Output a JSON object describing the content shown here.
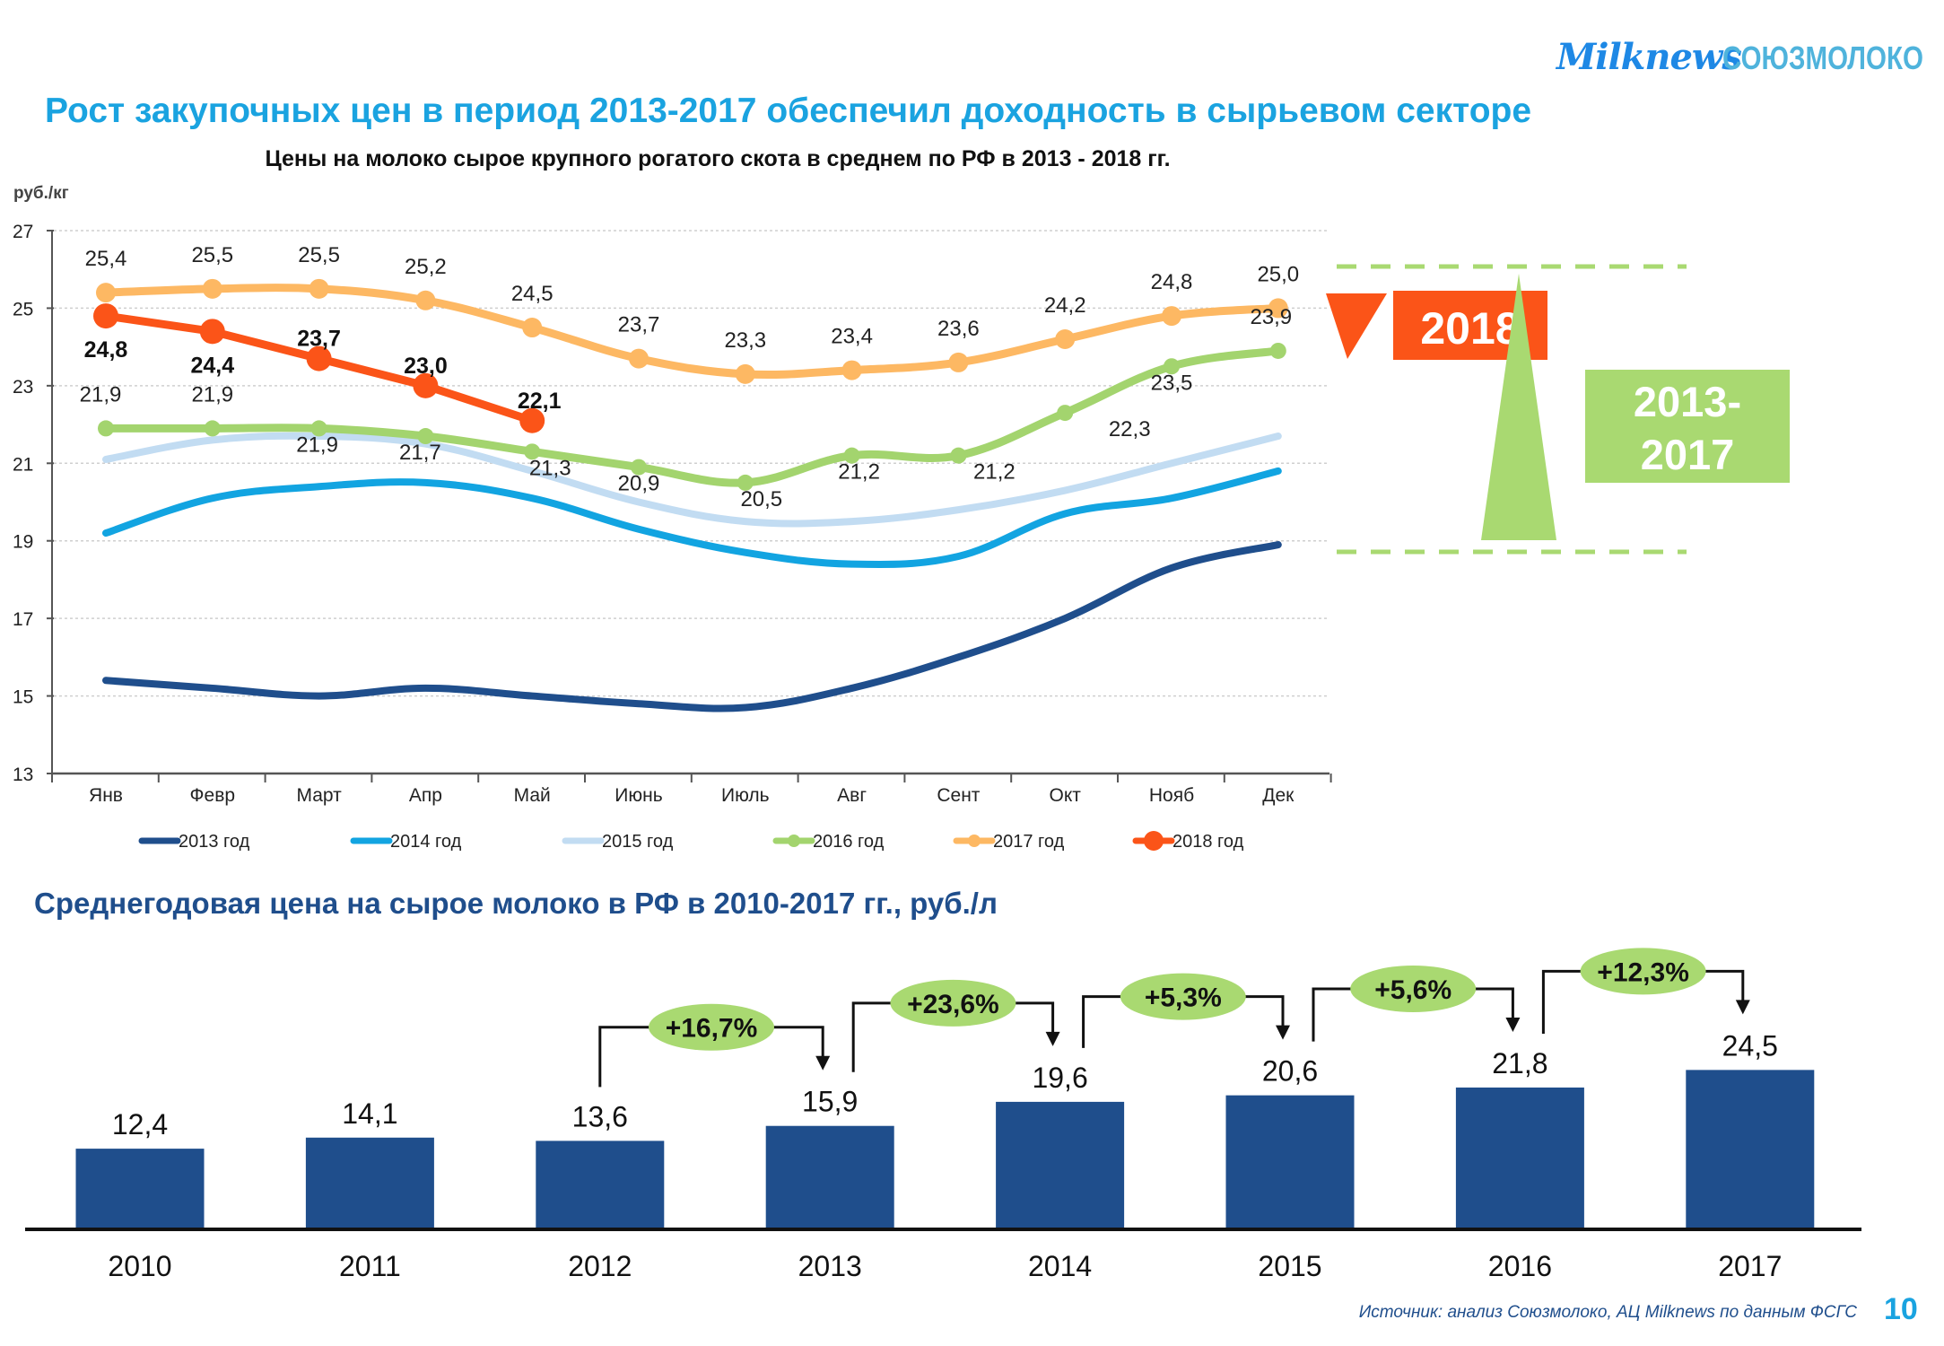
{
  "header": {
    "logo_milknews": "Milknews",
    "logo_soyuzmoloko": "СОЮЗМОЛОКО",
    "title": "Рост закупочных цен в период 2013-2017 обеспечил доходность в сырьевом секторе"
  },
  "annotations": {
    "badge_2018": "2018",
    "badge_2013_2017_line1": "2013-",
    "badge_2013_2017_line2": "2017",
    "colors": {
      "decline": "#fb5418",
      "growth": "#a9d971"
    }
  },
  "footer": {
    "source": "Источник: анализ Союзмолоко, АЦ Milknews по данным ФСГС",
    "page_number": "10"
  },
  "chart_data": [
    {
      "type": "line",
      "title": "Цены на молоко сырое крупного рогатого скота в среднем по РФ в 2013 - 2018 гг.",
      "ylabel": "руб./кг",
      "xlabel": "",
      "ylim": [
        13,
        27
      ],
      "yticks": [
        13,
        15,
        17,
        19,
        21,
        23,
        25,
        27
      ],
      "grid": true,
      "legend_position": "bottom",
      "categories": [
        "Янв",
        "Февр",
        "Март",
        "Апр",
        "Май",
        "Июнь",
        "Июль",
        "Авг",
        "Сент",
        "Окт",
        "Нояб",
        "Дек"
      ],
      "series": [
        {
          "name": "2013 год",
          "color": "#1f4e8c",
          "markers": false,
          "labels": false,
          "values": [
            15.4,
            15.2,
            15.0,
            15.2,
            15.0,
            14.8,
            14.7,
            15.2,
            16.0,
            17.0,
            18.3,
            18.9
          ]
        },
        {
          "name": "2014 год",
          "color": "#12a4e1",
          "markers": false,
          "labels": false,
          "values": [
            19.2,
            20.1,
            20.4,
            20.5,
            20.1,
            19.3,
            18.7,
            18.4,
            18.6,
            19.7,
            20.1,
            20.8
          ]
        },
        {
          "name": "2015 год",
          "color": "#c2dcf2",
          "markers": false,
          "labels": false,
          "values": [
            21.1,
            21.6,
            21.7,
            21.5,
            20.8,
            20.0,
            19.5,
            19.5,
            19.8,
            20.3,
            21.0,
            21.7
          ]
        },
        {
          "name": "2016 год",
          "color": "#a3d46e",
          "markers": true,
          "labels": true,
          "values": [
            21.9,
            21.9,
            21.9,
            21.7,
            21.3,
            20.9,
            20.5,
            21.2,
            21.2,
            22.3,
            23.5,
            23.9
          ]
        },
        {
          "name": "2017 год",
          "color": "#fdb863",
          "markers": true,
          "labels": true,
          "values": [
            25.4,
            25.5,
            25.5,
            25.2,
            24.5,
            23.7,
            23.3,
            23.4,
            23.6,
            24.2,
            24.8,
            25.0
          ]
        },
        {
          "name": "2018 год",
          "color": "#fb5418",
          "markers": true,
          "labels": true,
          "bold_labels": true,
          "values": [
            24.8,
            24.4,
            23.7,
            23.0,
            22.1
          ]
        }
      ]
    },
    {
      "type": "bar",
      "title": "Среднегодовая цена на сырое молоко в РФ в 2010-2017 гг., руб./л",
      "categories": [
        "2010",
        "2011",
        "2012",
        "2013",
        "2014",
        "2015",
        "2016",
        "2017"
      ],
      "values": [
        12.4,
        14.1,
        13.6,
        15.9,
        19.6,
        20.6,
        21.8,
        24.5
      ],
      "value_labels": [
        "12,4",
        "14,1",
        "13,6",
        "15,9",
        "19,6",
        "20,6",
        "21,8",
        "24,5"
      ],
      "color": "#1f4e8c",
      "growth_annotations": [
        {
          "from": "2012",
          "to": "2013",
          "label": "+16,7%"
        },
        {
          "from": "2013",
          "to": "2014",
          "label": "+23,6%"
        },
        {
          "from": "2014",
          "to": "2015",
          "label": "+5,3%"
        },
        {
          "from": "2015",
          "to": "2016",
          "label": "+5,6%"
        },
        {
          "from": "2016",
          "to": "2017",
          "label": "+12,3%"
        }
      ],
      "growth_bubble_color": "#a9d971"
    }
  ]
}
